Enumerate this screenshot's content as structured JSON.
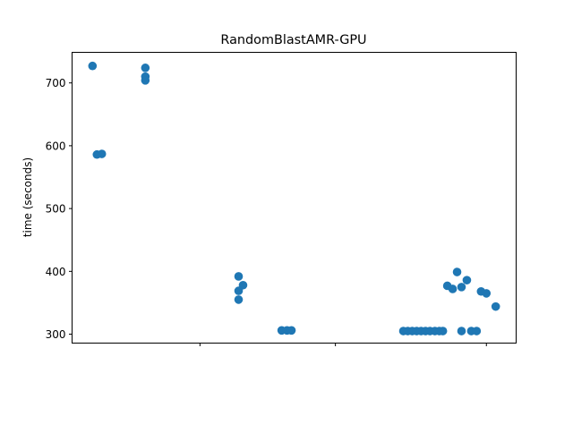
{
  "chart_data": {
    "type": "scatter",
    "title": "RandomBlastAMR-GPU",
    "xlabel": "",
    "ylabel": "time (seconds)",
    "xlim": [
      0,
      100
    ],
    "ylim": [
      285.8,
      748.7
    ],
    "x_ticks": [
      28.8,
      59.3,
      93.3
    ],
    "x_tick_labels": [
      "",
      "",
      ""
    ],
    "y_ticks": [
      300,
      400,
      500,
      600,
      700
    ],
    "y_tick_labels": [
      "300",
      "400",
      "500",
      "600",
      "700"
    ],
    "grid": false,
    "color": "#1f77b4",
    "points": [
      [
        4.6,
        727
      ],
      [
        5.6,
        586
      ],
      [
        6.7,
        587
      ],
      [
        16.5,
        724
      ],
      [
        16.5,
        710
      ],
      [
        16.5,
        704
      ],
      [
        37.5,
        392
      ],
      [
        38.5,
        378
      ],
      [
        37.5,
        369
      ],
      [
        37.5,
        355
      ],
      [
        47.2,
        306
      ],
      [
        48.4,
        306
      ],
      [
        49.4,
        306
      ],
      [
        74.6,
        305
      ],
      [
        75.6,
        305
      ],
      [
        76.6,
        305
      ],
      [
        77.6,
        305
      ],
      [
        78.6,
        305
      ],
      [
        79.6,
        305
      ],
      [
        80.6,
        305
      ],
      [
        81.7,
        305
      ],
      [
        82.7,
        305
      ],
      [
        83.5,
        305
      ],
      [
        84.5,
        377
      ],
      [
        85.7,
        372
      ],
      [
        86.7,
        399
      ],
      [
        87.7,
        375
      ],
      [
        87.7,
        305
      ],
      [
        88.9,
        386
      ],
      [
        89.9,
        305
      ],
      [
        91.1,
        305
      ],
      [
        92.1,
        368
      ],
      [
        93.3,
        365
      ],
      [
        95.4,
        344
      ]
    ]
  }
}
